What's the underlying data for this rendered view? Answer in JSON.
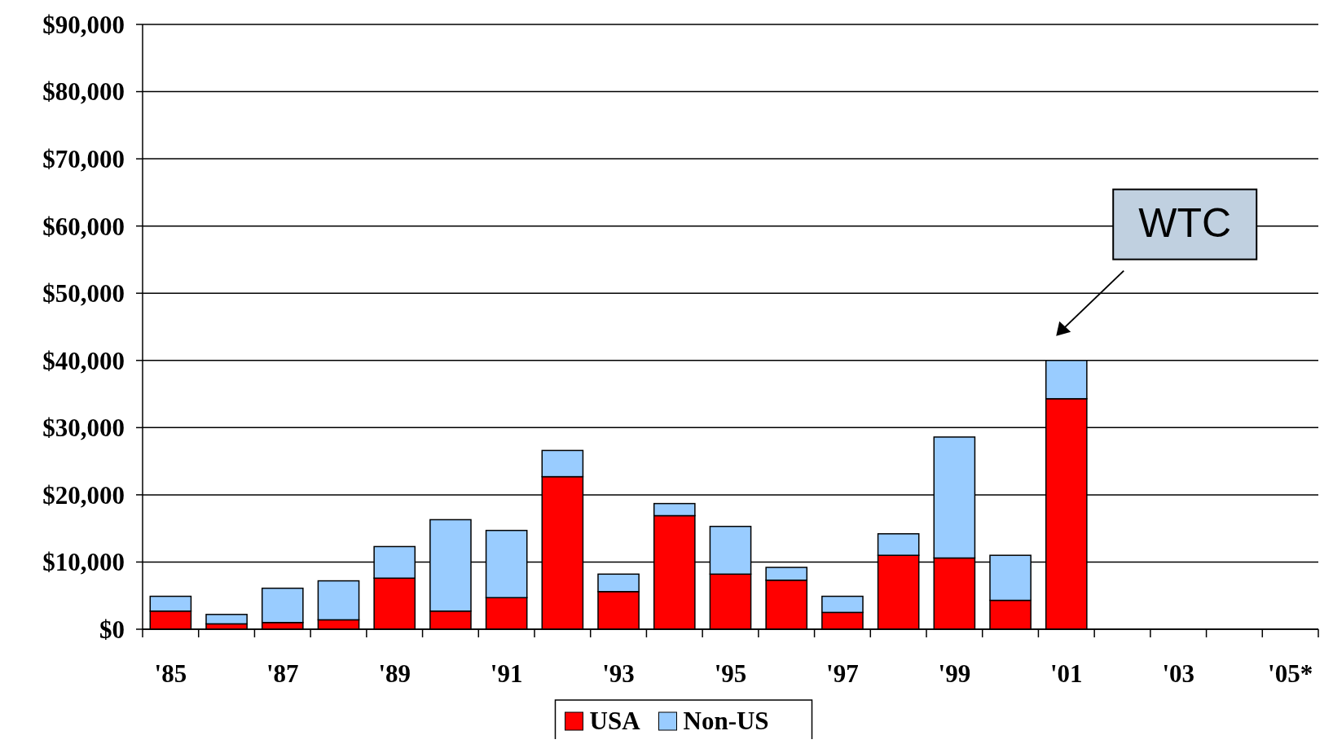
{
  "chart_data": {
    "type": "bar",
    "stacked": true,
    "categories": [
      "'85",
      null,
      "'87",
      null,
      "'89",
      null,
      "'91",
      null,
      "'93",
      null,
      "'95",
      null,
      "'97",
      null,
      "'99",
      null,
      "'01",
      null,
      "'03",
      null,
      "'05*"
    ],
    "series": [
      {
        "name": "USA",
        "color": "#ff0000",
        "values": [
          2700,
          800,
          1000,
          1400,
          7600,
          2700,
          4700,
          22700,
          5600,
          16900,
          8200,
          7300,
          2500,
          11000,
          10600,
          4300,
          34300,
          null,
          null,
          null,
          null
        ]
      },
      {
        "name": "Non-US",
        "color": "#99ccff",
        "values": [
          2200,
          1400,
          5100,
          5800,
          4700,
          13600,
          10000,
          3900,
          2600,
          1800,
          7100,
          1900,
          2400,
          3200,
          18000,
          6700,
          5700,
          null,
          null,
          null,
          null
        ]
      }
    ],
    "ylim": [
      0,
      90000
    ],
    "yticks": [
      {
        "value": 0,
        "label": "$0"
      },
      {
        "value": 10000,
        "label": "$10,000"
      },
      {
        "value": 20000,
        "label": "$20,000"
      },
      {
        "value": 30000,
        "label": "$30,000"
      },
      {
        "value": 40000,
        "label": "$40,000"
      },
      {
        "value": 50000,
        "label": "$50,000"
      },
      {
        "value": 60000,
        "label": "$60,000"
      },
      {
        "value": 70000,
        "label": "$70,000"
      },
      {
        "value": 80000,
        "label": "$80,000"
      },
      {
        "value": 90000,
        "label": "$90,000"
      }
    ],
    "grid": "y",
    "legend": "bottom",
    "annotations": [
      "WTC"
    ]
  }
}
